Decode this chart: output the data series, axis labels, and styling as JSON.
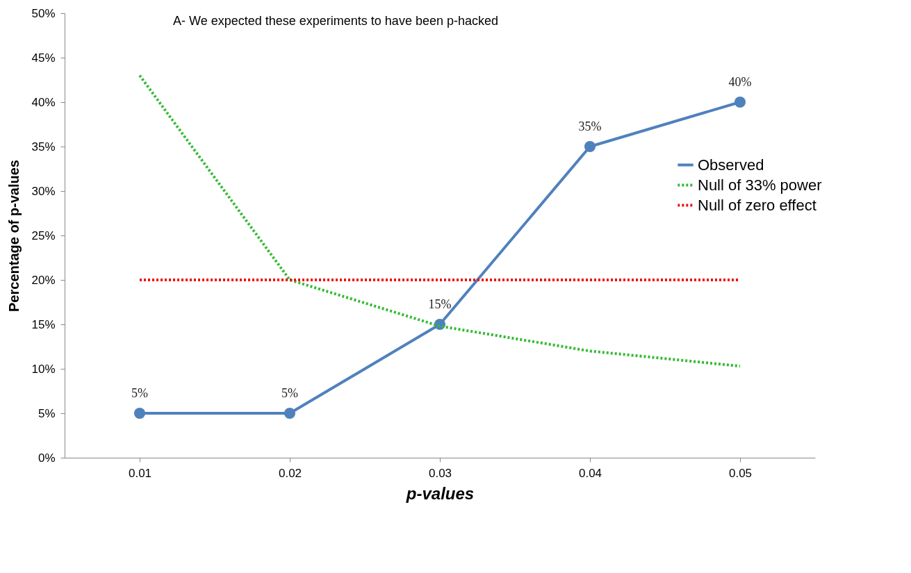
{
  "chart_data": {
    "type": "line",
    "title": "A- We expected these experiments to have been p-hacked",
    "xlabel": "p-values",
    "ylabel": "Percentage of p-values",
    "categories": [
      "0.01",
      "0.02",
      "0.03",
      "0.04",
      "0.05"
    ],
    "ylim": [
      0,
      50
    ],
    "yticks": [
      {
        "value": 0,
        "label": "0%"
      },
      {
        "value": 5,
        "label": "5%"
      },
      {
        "value": 10,
        "label": "10%"
      },
      {
        "value": 15,
        "label": "15%"
      },
      {
        "value": 20,
        "label": "20%"
      },
      {
        "value": 25,
        "label": "25%"
      },
      {
        "value": 30,
        "label": "30%"
      },
      {
        "value": 35,
        "label": "35%"
      },
      {
        "value": 40,
        "label": "40%"
      },
      {
        "value": 45,
        "label": "45%"
      },
      {
        "value": 50,
        "label": "50%"
      }
    ],
    "grid": false,
    "legend": "right",
    "series": [
      {
        "name": "Observed",
        "color": "#4f81bd",
        "values": [
          5,
          5,
          15,
          35,
          40
        ],
        "marker": "circle",
        "line_style": "solid",
        "value_labels": [
          "5%",
          "5%",
          "15%",
          "35%",
          "40%"
        ]
      },
      {
        "name": "Null of 33% power",
        "color": "#33bb33",
        "values": [
          43,
          20,
          14.8,
          12,
          10.3
        ],
        "marker": "none",
        "line_style": "dotted"
      },
      {
        "name": "Null of zero effect",
        "color": "#ee1111",
        "values": [
          20,
          20,
          20,
          20,
          20
        ],
        "marker": "none",
        "line_style": "dotted"
      }
    ]
  }
}
